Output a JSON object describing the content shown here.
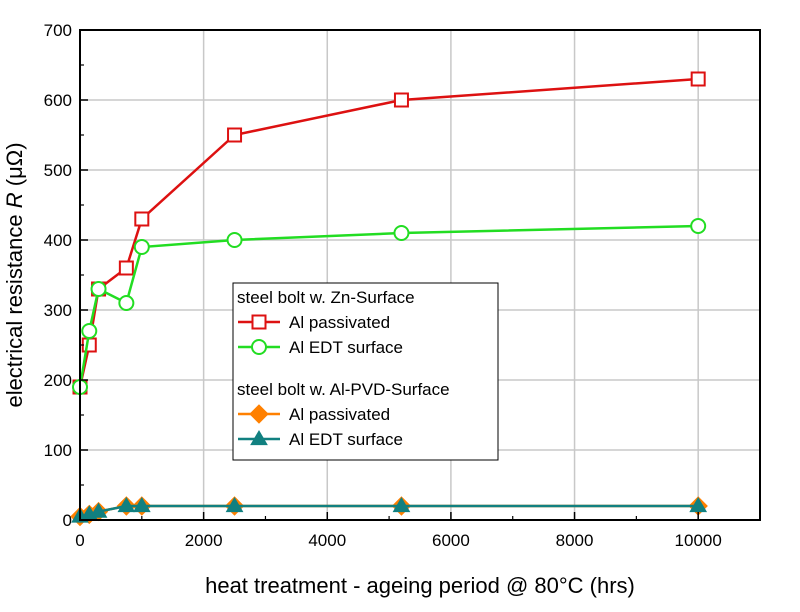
{
  "chart_data": {
    "type": "line",
    "xlabel": "heat treatment - ageing period @ 80°C (hrs)",
    "ylabel": "electrical resistance R (μΩ)",
    "xlim": [
      0,
      11000
    ],
    "ylim": [
      0,
      700
    ],
    "x_ticks": [
      "0",
      "2000",
      "4000",
      "6000",
      "8000",
      "10000"
    ],
    "y_ticks": [
      "0",
      "100",
      "200",
      "300",
      "400",
      "500",
      "600",
      "700"
    ],
    "grid": true,
    "legend_position": "center",
    "legend_groups": [
      {
        "heading": "steel bolt w. Zn-Surface",
        "series": [
          0,
          1
        ]
      },
      {
        "heading": "steel bolt w. Al-PVD-Surface",
        "series": [
          2,
          3
        ]
      }
    ],
    "series": [
      {
        "name": "Al passivated",
        "color": "#dd1111",
        "marker": "square-open",
        "x": [
          0,
          150,
          300,
          750,
          1000,
          2500,
          5200,
          10000
        ],
        "y": [
          190,
          250,
          330,
          360,
          430,
          550,
          600,
          630
        ]
      },
      {
        "name": "Al EDT surface",
        "color": "#22dd22",
        "marker": "circle-open",
        "x": [
          0,
          150,
          300,
          750,
          1000,
          2500,
          5200,
          10000
        ],
        "y": [
          190,
          270,
          330,
          310,
          390,
          400,
          410,
          420
        ]
      },
      {
        "name": "Al passivated",
        "color": "#ff8000",
        "marker": "diamond-filled",
        "x": [
          0,
          150,
          300,
          750,
          1000,
          2500,
          5200,
          10000
        ],
        "y": [
          5,
          8,
          12,
          20,
          20,
          20,
          20,
          20
        ]
      },
      {
        "name": "Al EDT surface",
        "color": "#118080",
        "marker": "triangle-filled",
        "x": [
          0,
          150,
          300,
          750,
          1000,
          2500,
          5200,
          10000
        ],
        "y": [
          5,
          8,
          12,
          20,
          20,
          20,
          20,
          20
        ]
      }
    ]
  }
}
